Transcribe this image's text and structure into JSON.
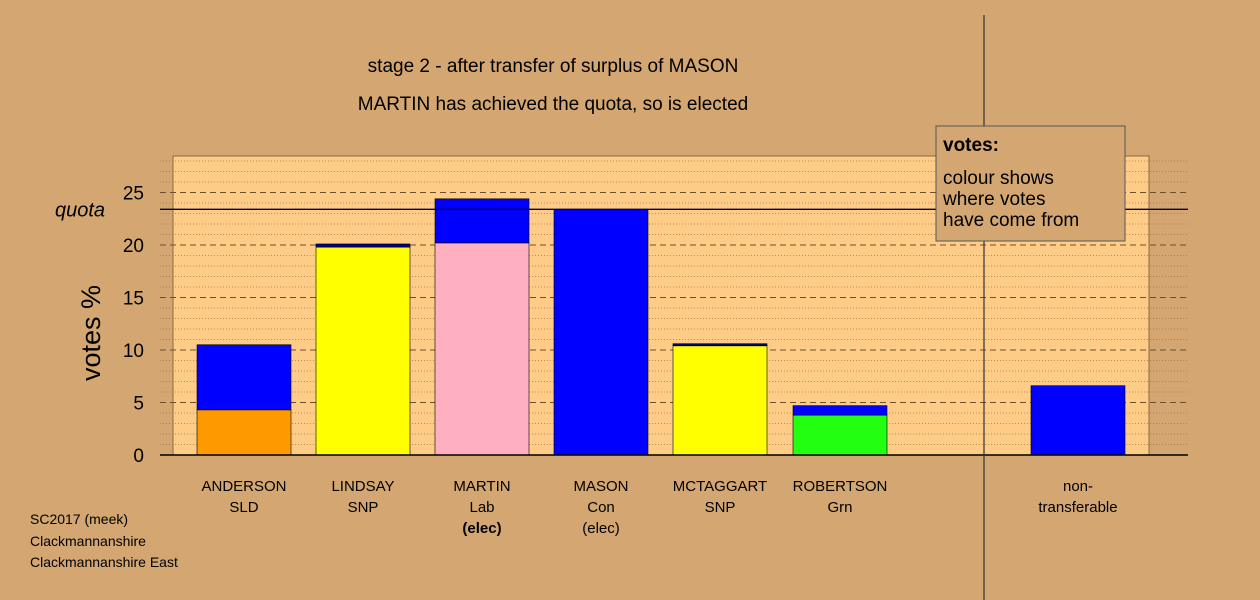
{
  "title_line1": "stage 2 - after transfer of surplus of MASON",
  "title_line2": "MARTIN has achieved the quota, so is elected",
  "quota_label": "quota",
  "legend": {
    "title": "votes:",
    "lines": [
      "colour shows",
      "where votes",
      "have come from"
    ]
  },
  "footer": [
    "SC2017 (meek)",
    "Clackmannanshire",
    "Clackmannanshire East"
  ],
  "colors": {
    "background": "#d3a672",
    "plot_bg": "#ffcc88",
    "blue": "#0000ff",
    "navy": "#000080",
    "orange": "#ff9900",
    "yellow": "#ffff00",
    "pink": "#ffb0c0",
    "green": "#22ff11"
  },
  "chart_data": {
    "type": "bar",
    "stacked": true,
    "ylabel": "votes %",
    "ylim": [
      0,
      28.5
    ],
    "yticks": [
      0,
      5,
      10,
      15,
      20,
      25
    ],
    "quota": 23.4,
    "candidates": [
      {
        "name": "ANDERSON",
        "party": "SLD",
        "note": "",
        "note_bold": false,
        "segments": [
          {
            "source": "own",
            "color": "#ff9900",
            "value": 4.3
          },
          {
            "source": "MASON",
            "color": "#0000ff",
            "value": 6.2
          }
        ]
      },
      {
        "name": "LINDSAY",
        "party": "SNP",
        "note": "",
        "note_bold": false,
        "segments": [
          {
            "source": "own",
            "color": "#ffff00",
            "value": 19.8
          },
          {
            "source": "MASON",
            "color": "#000080",
            "value": 0.3
          }
        ]
      },
      {
        "name": "MARTIN",
        "party": "Lab",
        "note": "(elec)",
        "note_bold": true,
        "segments": [
          {
            "source": "own",
            "color": "#ffb0c0",
            "value": 20.2
          },
          {
            "source": "MASON",
            "color": "#0000ff",
            "value": 4.2
          }
        ]
      },
      {
        "name": "MASON",
        "party": "Con",
        "note": "(elec)",
        "note_bold": false,
        "segments": [
          {
            "source": "own",
            "color": "#0000ff",
            "value": 23.4
          }
        ]
      },
      {
        "name": "MCTAGGART",
        "party": "SNP",
        "note": "",
        "note_bold": false,
        "segments": [
          {
            "source": "own",
            "color": "#ffff00",
            "value": 10.4
          },
          {
            "source": "MASON",
            "color": "#000080",
            "value": 0.2
          }
        ]
      },
      {
        "name": "ROBERTSON",
        "party": "Grn",
        "note": "",
        "note_bold": false,
        "segments": [
          {
            "source": "own",
            "color": "#22ff11",
            "value": 3.8
          },
          {
            "source": "MASON",
            "color": "#0000ff",
            "value": 0.9
          }
        ]
      }
    ],
    "nontransferable": {
      "label_line1": "non-",
      "label_line2": "transferable",
      "segments": [
        {
          "source": "MASON",
          "color": "#0000ff",
          "value": 6.6
        }
      ]
    }
  }
}
